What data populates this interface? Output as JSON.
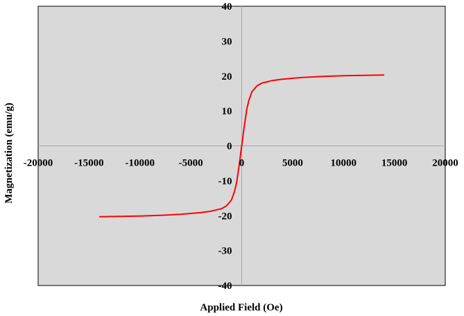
{
  "chart_data": {
    "type": "line",
    "title": "",
    "xlabel": "Applied Field (Oe)",
    "ylabel": "Magnetization (emu/g)",
    "xlim": [
      -20000,
      20000
    ],
    "ylim": [
      -40,
      40
    ],
    "x_ticks": [
      "-20000",
      "-15000",
      "-10000",
      "-5000",
      "0",
      "5000",
      "10000",
      "15000",
      "20000"
    ],
    "y_ticks": [
      "40",
      "30",
      "20",
      "10",
      "0",
      "-10",
      "-20",
      "-30",
      "-40"
    ],
    "grid": false,
    "legend": "none",
    "plot_background": "#d9d9d9",
    "series": [
      {
        "color": "#ff0000",
        "x": [
          -14000,
          -12000,
          -10000,
          -8000,
          -6000,
          -4000,
          -3000,
          -2000,
          -1500,
          -1000,
          -700,
          -500,
          -300,
          -200,
          -100,
          0,
          100,
          200,
          300,
          500,
          700,
          1000,
          1500,
          2000,
          3000,
          4000,
          6000,
          8000,
          10000,
          12000,
          14000
        ],
        "y": [
          -20.3,
          -20.2,
          -20.1,
          -19.9,
          -19.6,
          -19.1,
          -18.7,
          -18.0,
          -17.2,
          -15.5,
          -13.0,
          -10.5,
          -6.5,
          -4.4,
          -2.2,
          0,
          2.2,
          4.4,
          6.5,
          10.5,
          13.0,
          15.5,
          17.2,
          18.0,
          18.7,
          19.1,
          19.6,
          19.9,
          20.1,
          20.2,
          20.3
        ]
      }
    ]
  }
}
